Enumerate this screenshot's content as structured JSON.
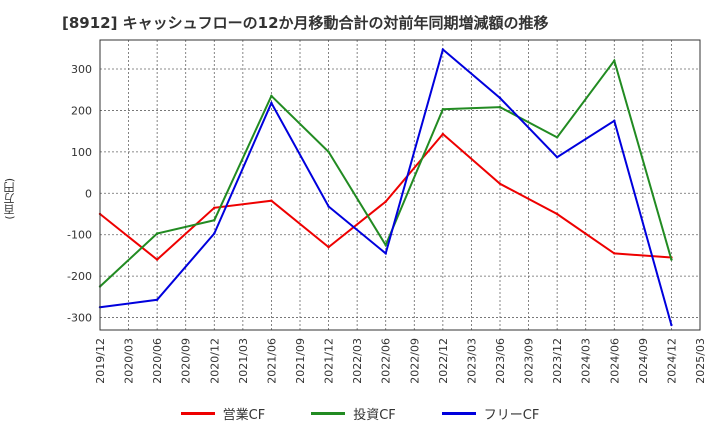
{
  "chart_data": {
    "type": "line",
    "title": "[8912]  キャッシュフローの12か月移動合計の対前年同期増減額の推移",
    "ylabel": "(百万円)",
    "xlabel": "",
    "ylim": [
      -330,
      370
    ],
    "yticks": [
      300,
      200,
      100,
      0,
      -100,
      -200,
      -300
    ],
    "xlim": [
      "2019/12",
      "2025/03"
    ],
    "x_ticks": [
      "2019/12",
      "2020/03",
      "2020/06",
      "2020/09",
      "2020/12",
      "2021/03",
      "2021/06",
      "2021/09",
      "2021/12",
      "2022/03",
      "2022/06",
      "2022/09",
      "2022/12",
      "2023/03",
      "2023/06",
      "2023/09",
      "2023/12",
      "2024/03",
      "2024/06",
      "2024/09",
      "2024/12",
      "2025/03"
    ],
    "grid": true,
    "legend": "bottom",
    "series": [
      {
        "name": "営業CF",
        "color": "#ee0000",
        "x": [
          "2019/12",
          "2020/06",
          "2020/12",
          "2021/06",
          "2021/12",
          "2022/06",
          "2022/12",
          "2023/06",
          "2023/12",
          "2024/06",
          "2024/12"
        ],
        "values": [
          -50,
          -160,
          -35,
          -18,
          -130,
          -20,
          143,
          23,
          -50,
          -145,
          -155
        ]
      },
      {
        "name": "投資CF",
        "color": "#228b22",
        "x": [
          "2019/12",
          "2020/06",
          "2020/12",
          "2021/06",
          "2021/12",
          "2022/06",
          "2022/12",
          "2023/06",
          "2023/12",
          "2024/06",
          "2024/12"
        ],
        "values": [
          -225,
          -97,
          -65,
          235,
          100,
          -125,
          203,
          208,
          135,
          320,
          -160
        ]
      },
      {
        "name": "フリーCF",
        "color": "#0000dd",
        "x": [
          "2019/12",
          "2020/06",
          "2020/12",
          "2021/06",
          "2021/12",
          "2022/06",
          "2022/12",
          "2023/06",
          "2023/12",
          "2024/06",
          "2024/12"
        ],
        "values": [
          -275,
          -257,
          -97,
          218,
          -32,
          -145,
          347,
          230,
          87,
          175,
          -318
        ]
      }
    ]
  }
}
